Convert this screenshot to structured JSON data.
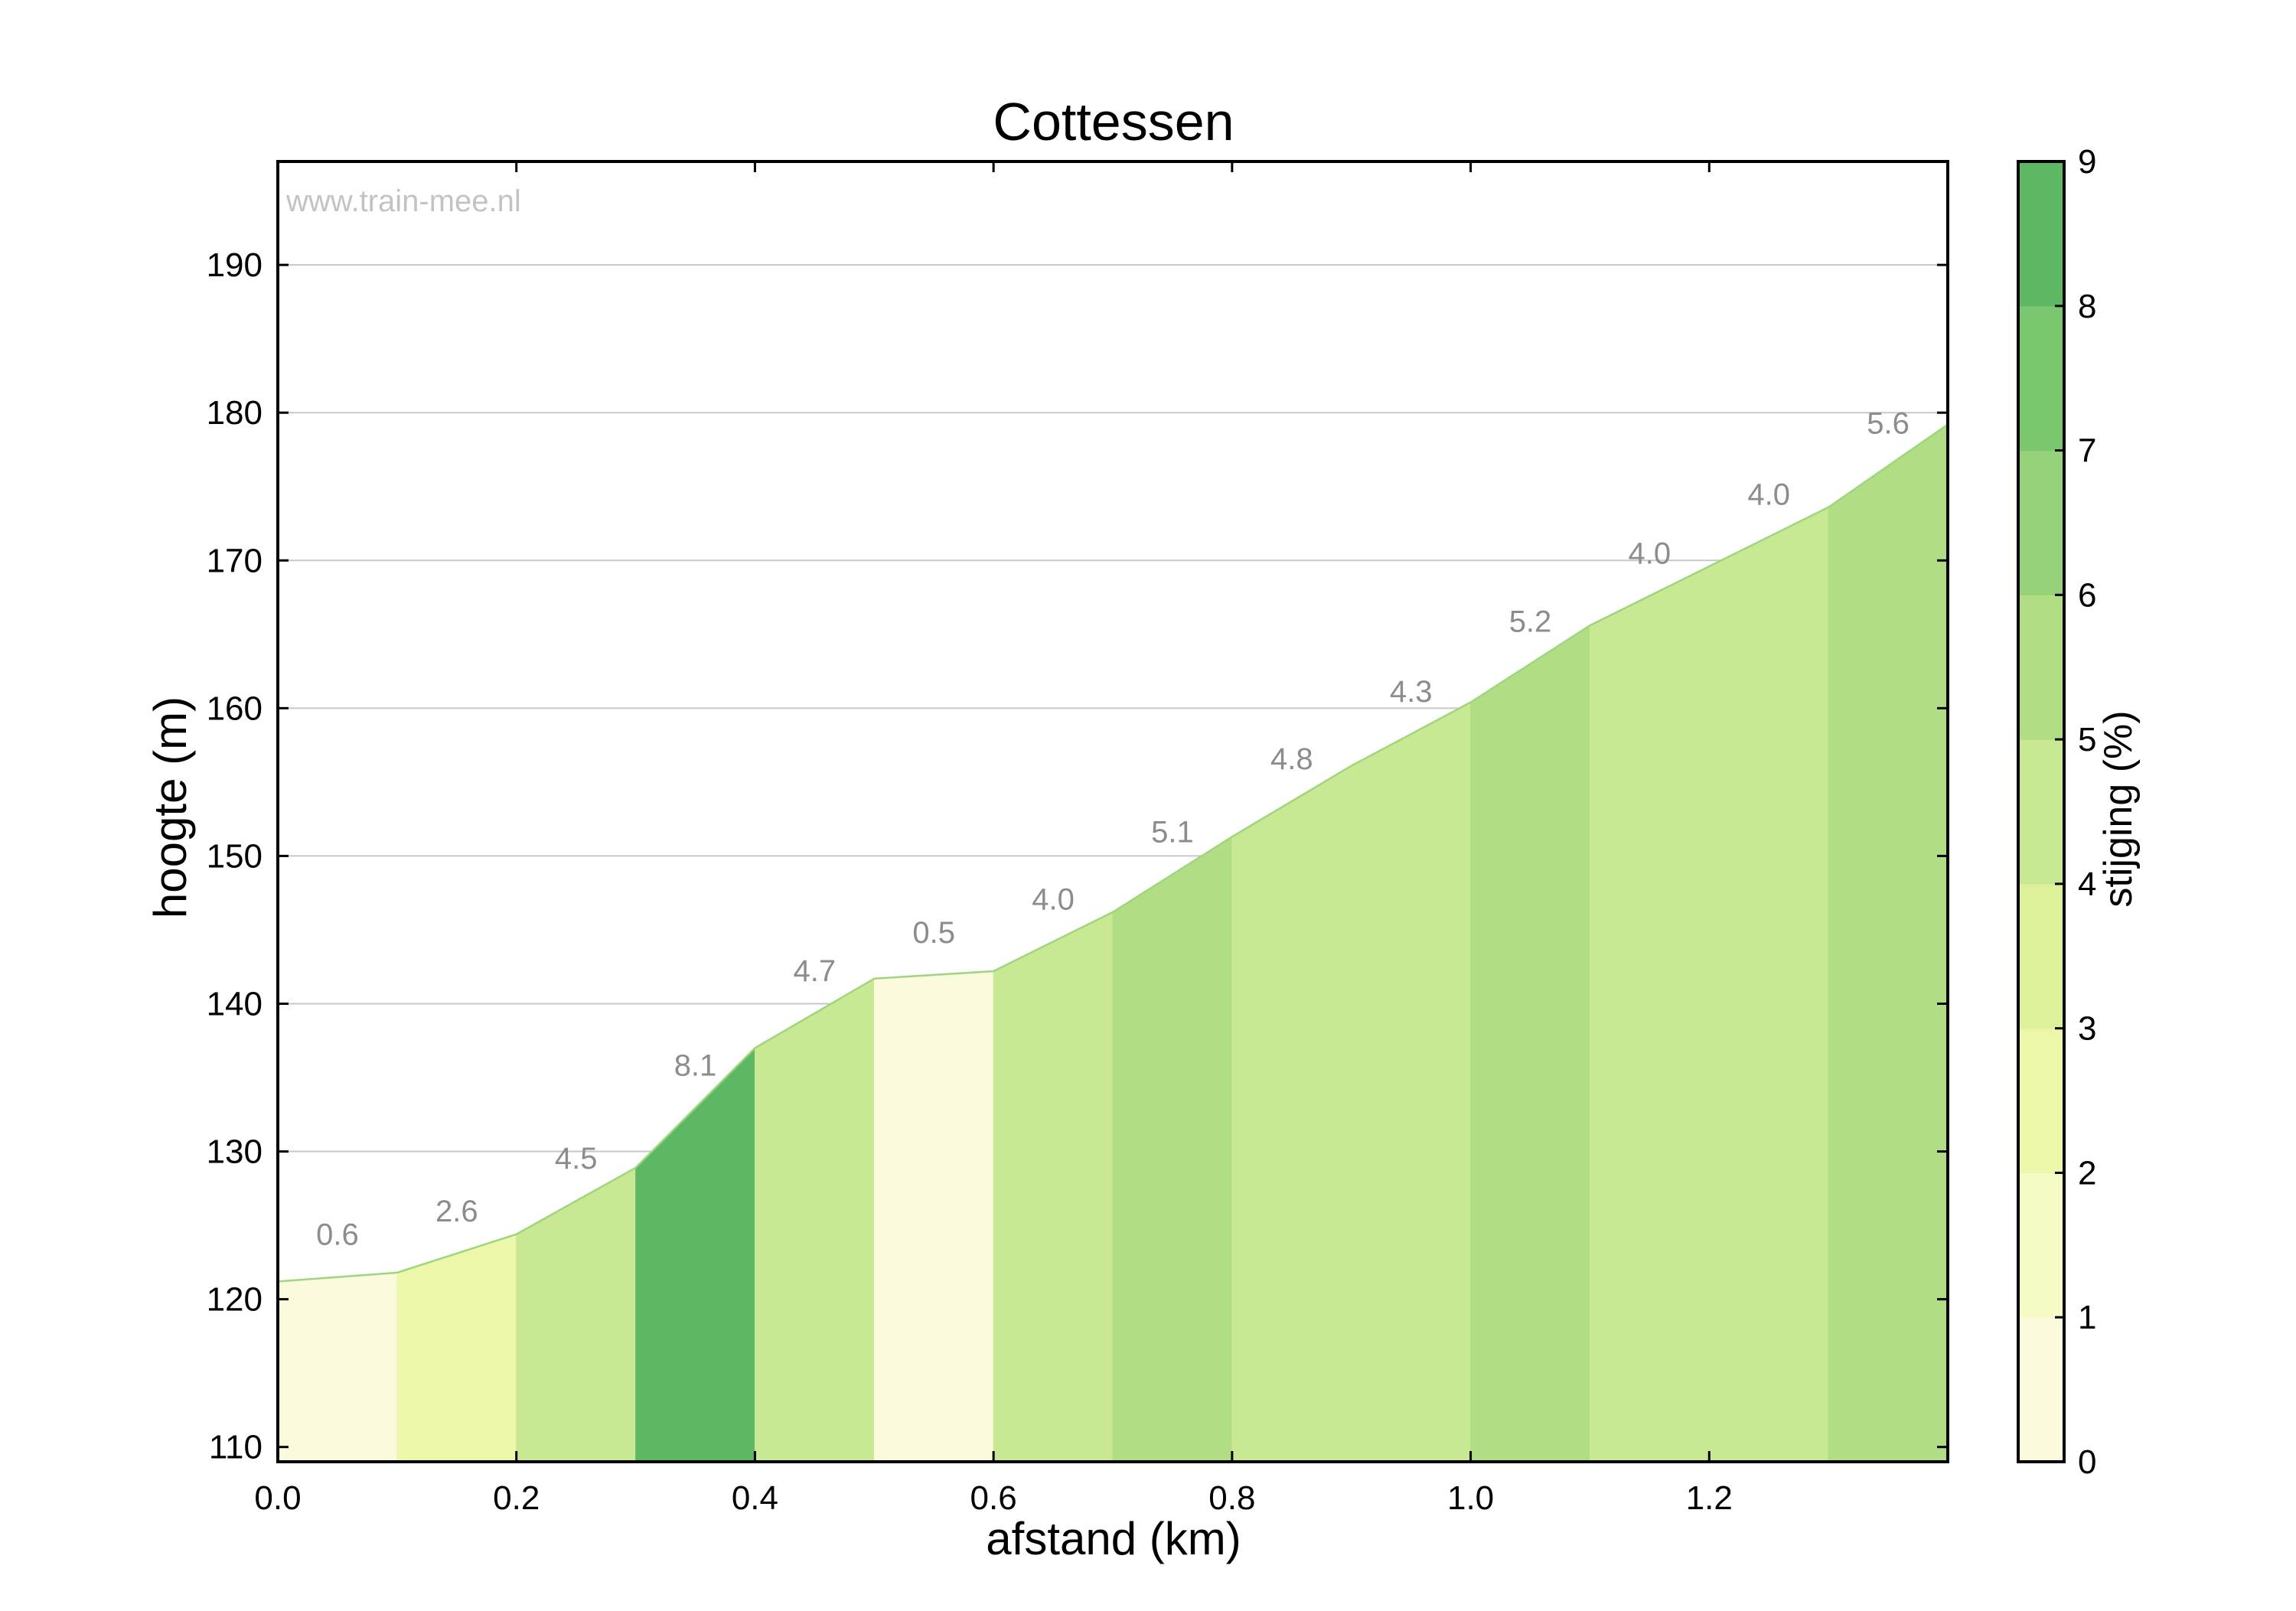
{
  "chart_data": {
    "type": "area",
    "title": "Cottessen",
    "xlabel": "afstand (km)",
    "ylabel": "hoogte (m)",
    "colorbar_label": "stijging (%)",
    "watermark": "www.train-mee.nl",
    "xlim": [
      0,
      1.4
    ],
    "ylim": [
      109,
      197
    ],
    "xticks": [
      "0.0",
      "0.2",
      "0.4",
      "0.6",
      "0.8",
      "1.0",
      "1.2"
    ],
    "yticks": [
      110,
      120,
      130,
      140,
      150,
      160,
      170,
      180,
      190
    ],
    "colorbar_ticks": [
      0,
      1,
      2,
      3,
      4,
      5,
      6,
      7,
      8,
      9
    ],
    "grid": true,
    "profile": {
      "x": [
        0.0,
        0.1,
        0.2,
        0.3,
        0.4,
        0.5,
        0.6,
        0.7,
        0.8,
        0.9,
        1.0,
        1.1,
        1.2,
        1.3,
        1.4
      ],
      "y": [
        121.2,
        121.8,
        124.4,
        128.9,
        137.0,
        141.7,
        142.2,
        146.2,
        151.3,
        156.1,
        160.4,
        165.6,
        169.6,
        173.6,
        179.2
      ]
    },
    "segments": [
      {
        "label": "0.6",
        "grade": 0.6
      },
      {
        "label": "2.6",
        "grade": 2.6
      },
      {
        "label": "4.5",
        "grade": 4.5
      },
      {
        "label": "8.1",
        "grade": 8.1
      },
      {
        "label": "4.7",
        "grade": 4.7
      },
      {
        "label": "0.5",
        "grade": 0.5
      },
      {
        "label": "4.0",
        "grade": 4.0
      },
      {
        "label": "5.1",
        "grade": 5.1
      },
      {
        "label": "4.8",
        "grade": 4.8
      },
      {
        "label": "4.3",
        "grade": 4.3
      },
      {
        "label": "5.2",
        "grade": 5.2
      },
      {
        "label": "4.0",
        "grade": 4.0
      },
      {
        "label": "4.0",
        "grade": 4.0
      },
      {
        "label": "5.6",
        "grade": 5.6
      }
    ],
    "colormap": [
      "#fbfadc",
      "#f6fac4",
      "#ecf7aa",
      "#ddf09a",
      "#c9e894",
      "#b1de85",
      "#96d27a",
      "#7bc770",
      "#5eb863"
    ],
    "colors": {
      "outline": "#9ed67e",
      "segment_label": "#8c8c8c",
      "watermark": "#c3c3c3",
      "grid": "#c8c8c8",
      "axis": "#000000"
    }
  }
}
